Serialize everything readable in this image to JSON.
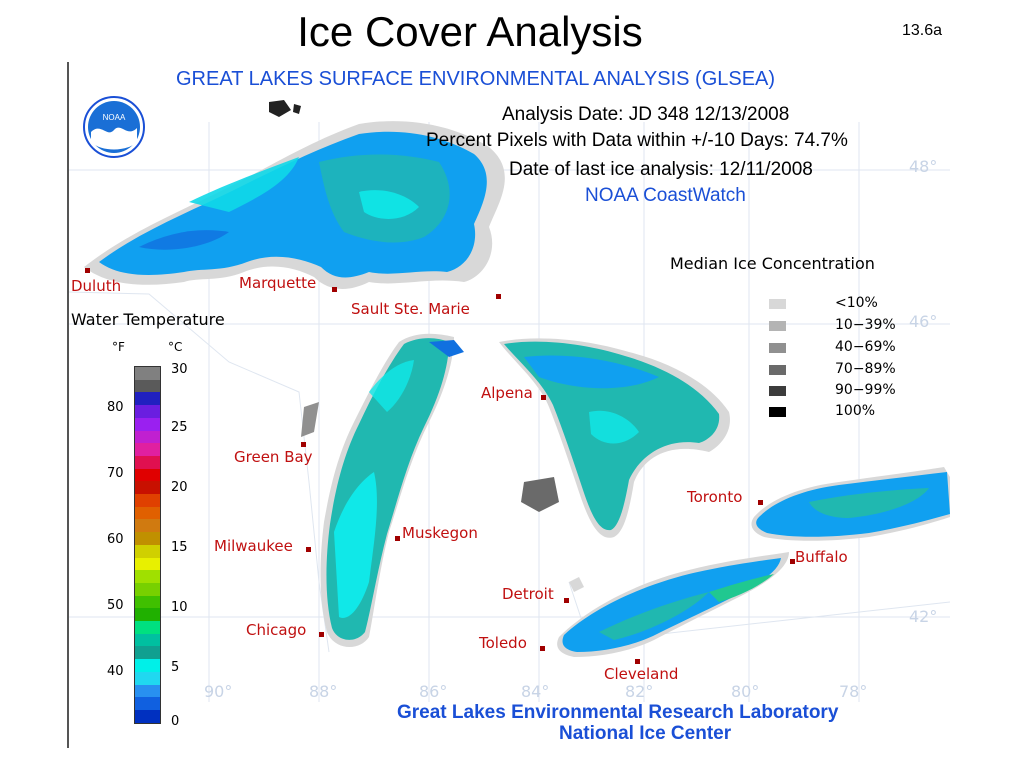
{
  "slide": {
    "title": "Ice Cover Analysis",
    "number": "13.6a"
  },
  "header": {
    "title": "GREAT LAKES SURFACE ENVIRONMENTAL ANALYSIS (GLSEA)",
    "analysis_date": "Analysis Date:  JD 348 12/13/2008",
    "percent_pixels": "Percent Pixels with Data within +/-10 Days:  74.7%",
    "last_ice": "Date of last ice analysis: 12/11/2008",
    "source": "NOAA CoastWatch"
  },
  "logo": {
    "text": "NOAA"
  },
  "footer": {
    "line1": "Great Lakes Environmental Research Laboratory",
    "line2": "National Ice Center"
  },
  "ice_legend": {
    "title": "Median Ice Concentration",
    "items": [
      {
        "label": "<10%",
        "color": "#d8d8d8"
      },
      {
        "label": "10−39%",
        "color": "#b4b4b4"
      },
      {
        "label": "40−69%",
        "color": "#909090"
      },
      {
        "label": "70−89%",
        "color": "#6a6a6a"
      },
      {
        "label": "90−99%",
        "color": "#3c3c3c"
      },
      {
        "label": "100%",
        "color": "#000000"
      }
    ]
  },
  "water_temperature": {
    "title": "Water Temperature",
    "unit_f": "°F",
    "unit_c": "°C",
    "f_ticks": [
      "80",
      "70",
      "60",
      "50",
      "40"
    ],
    "c_ticks": [
      "30",
      "25",
      "20",
      "15",
      "10",
      "5",
      "0"
    ],
    "colors": [
      "#808080",
      "#5a5a5a",
      "#2020c0",
      "#6a1ee0",
      "#9a20f0",
      "#c020d0",
      "#e020a0",
      "#e01050",
      "#e00000",
      "#c81000",
      "#e04000",
      "#e06000",
      "#d07a10",
      "#c09000",
      "#d0d000",
      "#e8f000",
      "#a0e000",
      "#78d000",
      "#40c000",
      "#20b000",
      "#00e080",
      "#00c0a0",
      "#10a090",
      "#00f0e8",
      "#20d8f0",
      "#2890f0",
      "#1060e0",
      "#0030c0"
    ]
  },
  "cities": [
    {
      "name": "Duluth"
    },
    {
      "name": "Marquette"
    },
    {
      "name": "Sault Ste. Marie"
    },
    {
      "name": "Green Bay"
    },
    {
      "name": "Alpena"
    },
    {
      "name": "Toronto"
    },
    {
      "name": "Muskegon"
    },
    {
      "name": "Milwaukee"
    },
    {
      "name": "Buffalo"
    },
    {
      "name": "Detroit"
    },
    {
      "name": "Chicago"
    },
    {
      "name": "Toledo"
    },
    {
      "name": "Cleveland"
    }
  ],
  "grid_labels": {
    "lat": [
      "48°",
      "46°",
      "42°"
    ],
    "lon": [
      "90°",
      "88°",
      "86°",
      "84°",
      "82°",
      "80°",
      "78°"
    ]
  },
  "colors": {
    "water_main": "#10a0f0",
    "water_green": "#20c8a0",
    "water_cyan": "#10e8e8",
    "ice": "#d8d8d8",
    "header_blue": "#1a4fd6",
    "city_red": "#c01010"
  }
}
